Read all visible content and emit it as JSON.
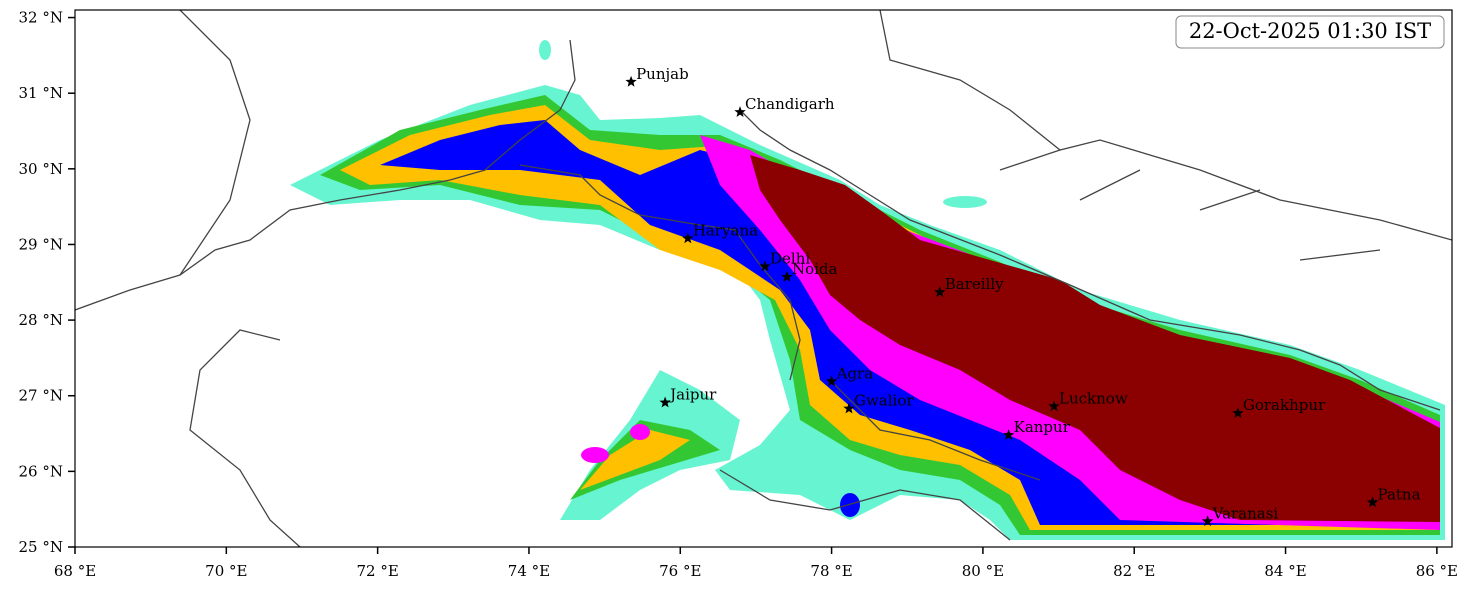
{
  "map": {
    "timestamp": "22-Oct-2025 01:30 IST",
    "xlim": [
      68,
      86.2
    ],
    "ylim": [
      25,
      32.1
    ],
    "xticks": [
      {
        "value": 68,
        "label": "68 °E"
      },
      {
        "value": 70,
        "label": "70 °E"
      },
      {
        "value": 72,
        "label": "72 °E"
      },
      {
        "value": 74,
        "label": "74 °E"
      },
      {
        "value": 76,
        "label": "76 °E"
      },
      {
        "value": 78,
        "label": "78 °E"
      },
      {
        "value": 80,
        "label": "80 °E"
      },
      {
        "value": 82,
        "label": "82 °E"
      },
      {
        "value": 84,
        "label": "84 °E"
      },
      {
        "value": 86,
        "label": "86 °E"
      }
    ],
    "yticks": [
      {
        "value": 25,
        "label": "25 °N"
      },
      {
        "value": 26,
        "label": "26 °N"
      },
      {
        "value": 27,
        "label": "27 °N"
      },
      {
        "value": 28,
        "label": "28 °N"
      },
      {
        "value": 29,
        "label": "29 °N"
      },
      {
        "value": 30,
        "label": "30 °N"
      },
      {
        "value": 31,
        "label": "31 °N"
      },
      {
        "value": 32,
        "label": "32 °N"
      }
    ],
    "cities": [
      {
        "name": "Punjab",
        "lon": 75.35,
        "lat": 31.15
      },
      {
        "name": "Chandigarh",
        "lon": 76.79,
        "lat": 30.75
      },
      {
        "name": "Haryana",
        "lon": 76.1,
        "lat": 29.08
      },
      {
        "name": "Delhi",
        "lon": 77.12,
        "lat": 28.71
      },
      {
        "name": "Noida",
        "lon": 77.41,
        "lat": 28.57
      },
      {
        "name": "Bareilly",
        "lon": 79.43,
        "lat": 28.37
      },
      {
        "name": "Agra",
        "lon": 78.0,
        "lat": 27.19
      },
      {
        "name": "Jaipur",
        "lon": 75.8,
        "lat": 26.91
      },
      {
        "name": "Gwalior",
        "lon": 78.23,
        "lat": 26.83
      },
      {
        "name": "Lucknow",
        "lon": 80.94,
        "lat": 26.86
      },
      {
        "name": "Kanpur",
        "lon": 80.34,
        "lat": 26.48
      },
      {
        "name": "Gorakhpur",
        "lon": 83.37,
        "lat": 26.77
      },
      {
        "name": "Varanasi",
        "lon": 82.97,
        "lat": 25.34
      },
      {
        "name": "Patna",
        "lon": 85.15,
        "lat": 25.59
      }
    ]
  }
}
